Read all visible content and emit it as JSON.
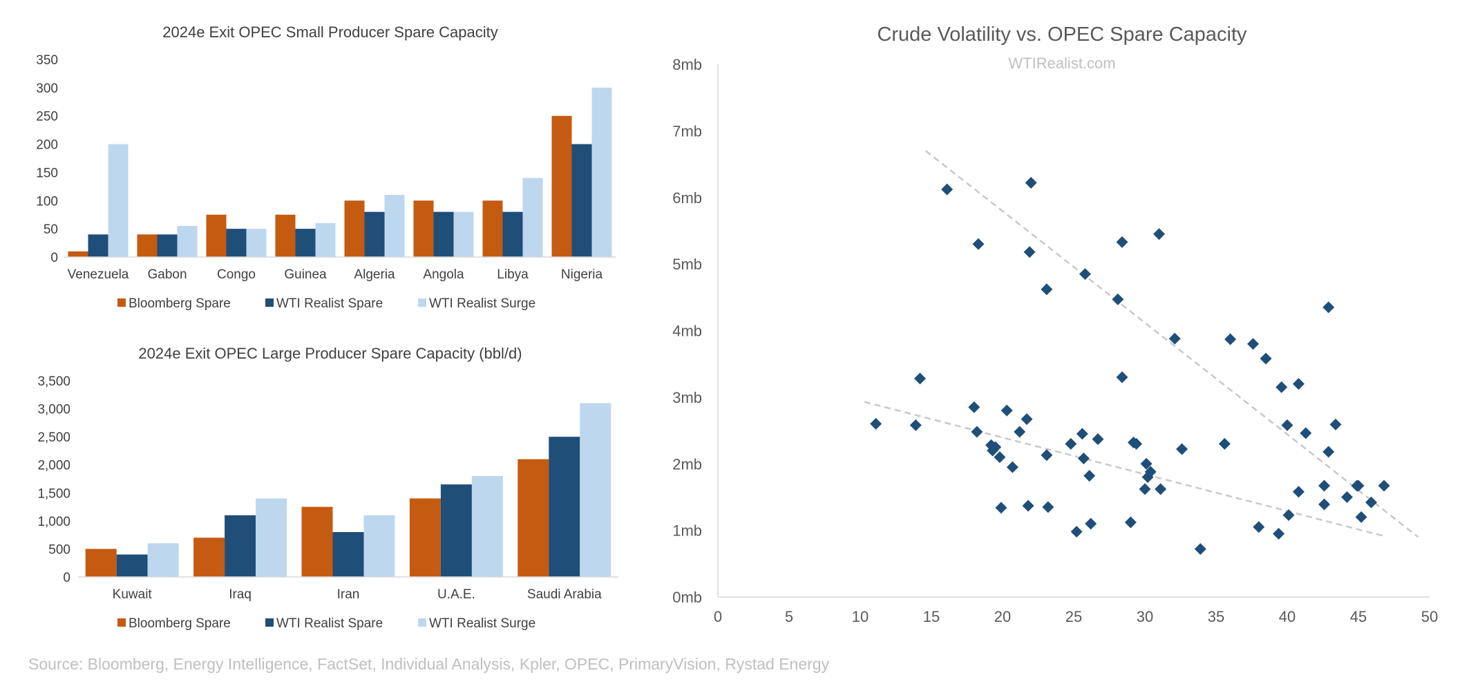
{
  "colors": {
    "bloomberg": "#c55a11",
    "wti_spare": "#1f4e79",
    "wti_surge": "#bdd7ee",
    "scatter": "#1f4e79",
    "trend": "#c8c8c8",
    "axis": "#d9d9d9"
  },
  "chart_data": [
    {
      "type": "bar",
      "title": "2024e Exit OPEC Small Producer Spare Capacity",
      "categories": [
        "Venezuela",
        "Gabon",
        "Congo",
        "Guinea",
        "Algeria",
        "Angola",
        "Libya",
        "Nigeria"
      ],
      "series": [
        {
          "name": "Bloomberg Spare",
          "values": [
            10,
            40,
            75,
            75,
            100,
            100,
            100,
            250
          ]
        },
        {
          "name": "WTI Realist Spare",
          "values": [
            40,
            40,
            50,
            50,
            80,
            80,
            80,
            200
          ]
        },
        {
          "name": "WTI Realist Surge",
          "values": [
            200,
            55,
            50,
            60,
            110,
            80,
            140,
            300
          ]
        }
      ],
      "ylim": [
        0,
        350
      ],
      "yticks": [
        0,
        50,
        100,
        150,
        200,
        250,
        300,
        350
      ],
      "ytick_labels": [
        "0",
        "50",
        "100",
        "150",
        "200",
        "250",
        "300",
        "350"
      ],
      "legend": "bottom"
    },
    {
      "type": "bar",
      "title": "2024e Exit OPEC Large Producer Spare Capacity (bbl/d)",
      "categories": [
        "Kuwait",
        "Iraq",
        "Iran",
        "U.A.E.",
        "Saudi Arabia"
      ],
      "series": [
        {
          "name": "Bloomberg Spare",
          "values": [
            500,
            700,
            1250,
            1400,
            2100
          ]
        },
        {
          "name": "WTI Realist Spare",
          "values": [
            400,
            1100,
            800,
            1650,
            2500
          ]
        },
        {
          "name": "WTI Realist Surge",
          "values": [
            600,
            1400,
            1100,
            1800,
            3100
          ]
        }
      ],
      "ylim": [
        0,
        3500
      ],
      "yticks": [
        0,
        500,
        1000,
        1500,
        2000,
        2500,
        3000,
        3500
      ],
      "ytick_labels": [
        "0",
        "500",
        "1,000",
        "1,500",
        "2,000",
        "2,500",
        "3,000",
        "3,500"
      ],
      "legend": "bottom"
    },
    {
      "type": "scatter",
      "title": "Crude Volatility vs. OPEC Spare Capacity",
      "subtitle": "WTIRealist.com",
      "xlim": [
        0,
        50
      ],
      "ylim": [
        0,
        8
      ],
      "xticks": [
        0,
        5,
        10,
        15,
        20,
        25,
        30,
        35,
        40,
        45,
        50
      ],
      "xtick_labels": [
        "0",
        "5",
        "10",
        "15",
        "20",
        "25",
        "30",
        "35",
        "40",
        "45",
        "50"
      ],
      "yticks": [
        0,
        1,
        2,
        3,
        4,
        5,
        6,
        7,
        8
      ],
      "ytick_labels": [
        "0mb",
        "1mb",
        "2mb",
        "3mb",
        "4mb",
        "5mb",
        "6mb",
        "7mb",
        "8mb"
      ],
      "points": [
        [
          11.1,
          2.6
        ],
        [
          13.9,
          2.58
        ],
        [
          14.2,
          3.28
        ],
        [
          16.1,
          6.12
        ],
        [
          18.0,
          2.85
        ],
        [
          18.2,
          2.48
        ],
        [
          18.3,
          5.3
        ],
        [
          19.2,
          2.28
        ],
        [
          19.3,
          2.2
        ],
        [
          19.5,
          2.25
        ],
        [
          19.8,
          2.1
        ],
        [
          19.9,
          1.34
        ],
        [
          20.3,
          2.8
        ],
        [
          20.7,
          1.95
        ],
        [
          21.2,
          2.48
        ],
        [
          21.7,
          2.67
        ],
        [
          21.8,
          1.37
        ],
        [
          21.9,
          5.18
        ],
        [
          22.0,
          6.22
        ],
        [
          23.1,
          4.62
        ],
        [
          23.1,
          2.13
        ],
        [
          23.2,
          1.35
        ],
        [
          24.8,
          2.3
        ],
        [
          25.2,
          0.98
        ],
        [
          25.6,
          2.45
        ],
        [
          25.7,
          2.08
        ],
        [
          25.8,
          4.85
        ],
        [
          26.1,
          1.82
        ],
        [
          26.2,
          1.1
        ],
        [
          26.7,
          2.37
        ],
        [
          28.1,
          4.47
        ],
        [
          28.4,
          5.33
        ],
        [
          28.4,
          3.3
        ],
        [
          29.0,
          1.12
        ],
        [
          29.2,
          2.32
        ],
        [
          29.4,
          2.3
        ],
        [
          30.0,
          1.62
        ],
        [
          30.1,
          2.0
        ],
        [
          30.2,
          1.8
        ],
        [
          30.4,
          1.88
        ],
        [
          31.0,
          5.45
        ],
        [
          31.1,
          1.62
        ],
        [
          32.1,
          3.88
        ],
        [
          32.6,
          2.22
        ],
        [
          33.9,
          0.72
        ],
        [
          35.6,
          2.3
        ],
        [
          36.0,
          3.87
        ],
        [
          37.6,
          3.8
        ],
        [
          38.0,
          1.05
        ],
        [
          38.5,
          3.58
        ],
        [
          39.4,
          0.95
        ],
        [
          39.6,
          3.15
        ],
        [
          40.0,
          2.58
        ],
        [
          40.1,
          1.23
        ],
        [
          40.8,
          3.2
        ],
        [
          40.8,
          1.58
        ],
        [
          41.3,
          2.46
        ],
        [
          42.6,
          1.67
        ],
        [
          42.6,
          1.39
        ],
        [
          42.9,
          4.35
        ],
        [
          42.9,
          2.18
        ],
        [
          43.4,
          2.59
        ],
        [
          44.2,
          1.5
        ],
        [
          44.9,
          1.67
        ],
        [
          45.0,
          1.67
        ],
        [
          45.2,
          1.2
        ],
        [
          45.9,
          1.42
        ],
        [
          46.8,
          1.67
        ]
      ],
      "trendlines": [
        {
          "x": [
            14.6,
            49.2
          ],
          "y": [
            6.7,
            0.9
          ]
        },
        {
          "x": [
            10.3,
            46.7
          ],
          "y": [
            2.93,
            0.92
          ]
        }
      ]
    }
  ],
  "source": "Source: Bloomberg, Energy Intelligence, FactSet, Individual Analysis, Kpler, OPEC, PrimaryVision, Rystad Energy"
}
